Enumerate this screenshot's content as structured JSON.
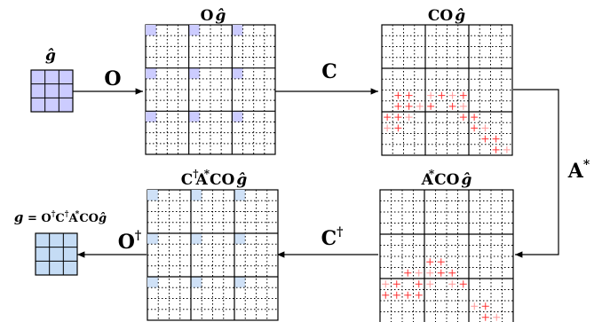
{
  "labels": {
    "small_in_title": "ĝ",
    "op_O": "O",
    "grid1_title_a": "O",
    "grid1_title_b": "ĝ",
    "op_C": "C",
    "grid2_title_a": "CO",
    "grid2_title_b": "ĝ",
    "op_A_base": "A",
    "op_A_sup": "*",
    "grid3_title_a": "A",
    "grid3_title_sup": "*",
    "grid3_title_b": "CO",
    "grid3_title_c": "ĝ",
    "op_Cdag_base": "C",
    "op_Cdag_sup": "†",
    "grid4_title_a": "C",
    "grid4_title_sup1": "†",
    "grid4_title_b": "A",
    "grid4_title_sup2": "*",
    "grid4_title_c": "CO",
    "grid4_title_d": "ĝ",
    "op_Odag_base": "O",
    "op_Odag_sup": "†",
    "out_g": "g",
    "out_eq": " = O",
    "out_dag1": "†",
    "out_c": "C",
    "out_dag2": "†",
    "out_a": "A",
    "out_star": "*",
    "out_co": "CO",
    "out_ghat": "ĝ"
  },
  "colors": {
    "input_fill": "#ccccff",
    "output_fill": "#c5dcf5",
    "sample_fill": "#ccccff",
    "back_fill": "#cfe1f7",
    "plus": "#ff3333",
    "plus_faint": "#ff9999"
  },
  "grids": {
    "input_cells": 3,
    "big_cells": 12,
    "big_blocks": 3
  },
  "plus_marks": {
    "grid2": [
      [
        0,
        8
      ],
      [
        1,
        8
      ],
      [
        2,
        8
      ],
      [
        1,
        7
      ],
      [
        2,
        7
      ],
      [
        3,
        7
      ],
      [
        1,
        6
      ],
      [
        2,
        6
      ],
      [
        4,
        6
      ],
      [
        5,
        6
      ],
      [
        4,
        7
      ],
      [
        6,
        6
      ],
      [
        7,
        6
      ],
      [
        6,
        7
      ],
      [
        7,
        7
      ],
      [
        7,
        8
      ],
      [
        8,
        8
      ],
      [
        0,
        9
      ],
      [
        1,
        9
      ],
      [
        8,
        9
      ],
      [
        9,
        9
      ],
      [
        9,
        10
      ],
      [
        10,
        10
      ],
      [
        11,
        11
      ],
      [
        10,
        11
      ]
    ],
    "grid3": [
      [
        0,
        9
      ],
      [
        1,
        9
      ],
      [
        0,
        8
      ],
      [
        1,
        8
      ],
      [
        2,
        7
      ],
      [
        3,
        7
      ],
      [
        4,
        6
      ],
      [
        5,
        6
      ],
      [
        4,
        7
      ],
      [
        5,
        7
      ],
      [
        6,
        7
      ],
      [
        6,
        8
      ],
      [
        7,
        8
      ],
      [
        3,
        8
      ],
      [
        4,
        8
      ],
      [
        2,
        9
      ],
      [
        3,
        9
      ],
      [
        8,
        10
      ],
      [
        9,
        10
      ],
      [
        9,
        11
      ],
      [
        10,
        11
      ]
    ]
  }
}
